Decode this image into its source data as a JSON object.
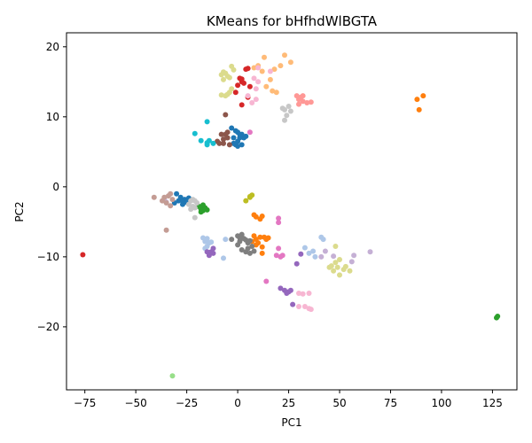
{
  "chart_data": {
    "type": "scatter",
    "title": "KMeans for bHfhdWlBGTA",
    "xlabel": "PC1",
    "ylabel": "PC2",
    "xlim": [
      -84,
      137
    ],
    "ylim": [
      -29,
      22
    ],
    "xticks": [
      -75,
      -50,
      -25,
      0,
      25,
      50,
      75,
      100,
      125
    ],
    "yticks": [
      -20,
      -10,
      0,
      10,
      20
    ],
    "grid": false,
    "legend": "none",
    "series": [
      {
        "color": "#1f77b4",
        "points": [
          [
            -30,
            -1
          ],
          [
            -29,
            -2
          ],
          [
            -28,
            -1.5
          ],
          [
            -27,
            -2.5
          ],
          [
            -26,
            -1.8
          ],
          [
            -25,
            -2.2
          ],
          [
            -24,
            -1.6
          ],
          [
            -27,
            -2
          ],
          [
            -31,
            -2.3
          ],
          [
            -2,
            7
          ],
          [
            -1,
            8
          ],
          [
            0,
            6.5
          ],
          [
            1,
            7.5
          ],
          [
            2,
            6
          ],
          [
            3,
            7
          ],
          [
            0,
            7.8
          ],
          [
            -2,
            6.2
          ],
          [
            1,
            7
          ],
          [
            -1,
            6
          ],
          [
            2,
            7.5
          ],
          [
            4,
            7.2
          ],
          [
            0,
            5.8
          ],
          [
            -3,
            8.4
          ]
        ]
      },
      {
        "color": "#aec7e8",
        "points": [
          [
            -17,
            -7.3
          ],
          [
            -16,
            -7.8
          ],
          [
            -15,
            -7.4
          ],
          [
            -14,
            -8
          ],
          [
            -15,
            -8.5
          ],
          [
            -13,
            -7.9
          ],
          [
            -16,
            -8.8
          ],
          [
            -7,
            -10.2
          ],
          [
            -6,
            -7.5
          ],
          [
            35,
            -9.5
          ],
          [
            38,
            -10
          ],
          [
            41,
            -7.2
          ],
          [
            42,
            -7.5
          ],
          [
            33,
            -8.7
          ],
          [
            37,
            -9.2
          ]
        ]
      },
      {
        "color": "#ff7f0e",
        "points": [
          [
            8,
            -4
          ],
          [
            9,
            -4.3
          ],
          [
            11,
            -4.6
          ],
          [
            12,
            -4.2
          ],
          [
            8,
            -7
          ],
          [
            9,
            -7.5
          ],
          [
            10,
            -8
          ],
          [
            11,
            -7.2
          ],
          [
            12,
            -8.6
          ],
          [
            13,
            -7.2
          ],
          [
            14,
            -7.5
          ],
          [
            15,
            -7.3
          ],
          [
            9,
            -8.3
          ],
          [
            7,
            -7.8
          ],
          [
            12,
            -9.5
          ],
          [
            88,
            12.5
          ],
          [
            91,
            13
          ],
          [
            89,
            11
          ]
        ]
      },
      {
        "color": "#ffbb78",
        "points": [
          [
            8,
            17
          ],
          [
            10,
            17.3
          ],
          [
            13,
            18.5
          ],
          [
            18,
            16.8
          ],
          [
            21,
            17.3
          ],
          [
            23,
            18.8
          ],
          [
            26,
            17.8
          ],
          [
            14,
            14.3
          ],
          [
            16,
            15.3
          ],
          [
            17,
            13.7
          ],
          [
            19,
            13.5
          ],
          [
            12,
            16.5
          ]
        ]
      },
      {
        "color": "#2ca02c",
        "points": [
          [
            -19,
            -2.8
          ],
          [
            -18,
            -3.2
          ],
          [
            -17,
            -3.4
          ],
          [
            -16,
            -3
          ],
          [
            -18,
            -3.6
          ],
          [
            -15,
            -3.3
          ],
          [
            -17,
            -2.6
          ],
          [
            127,
            -18.7
          ],
          [
            127.5,
            -18.5
          ]
        ]
      },
      {
        "color": "#98df8a",
        "points": [
          [
            -32,
            -27
          ]
        ]
      },
      {
        "color": "#d62728",
        "points": [
          [
            -76,
            -9.7
          ],
          [
            -1,
            13.5
          ],
          [
            0,
            14.5
          ],
          [
            1,
            15.5
          ],
          [
            2,
            15
          ],
          [
            3,
            14.8
          ],
          [
            4,
            16.8
          ],
          [
            5,
            16.9
          ],
          [
            6,
            14.3
          ],
          [
            5,
            12.8
          ],
          [
            2,
            11.7
          ],
          [
            2,
            15.4
          ]
        ]
      },
      {
        "color": "#ff9896",
        "points": [
          [
            29,
            13
          ],
          [
            30,
            12.5
          ],
          [
            31,
            12.8
          ],
          [
            32,
            12.2
          ],
          [
            30,
            11.8
          ],
          [
            32,
            13
          ],
          [
            34,
            12
          ],
          [
            36,
            12.1
          ]
        ]
      },
      {
        "color": "#9467bd",
        "points": [
          [
            -15,
            -9.3
          ],
          [
            -14,
            -9.8
          ],
          [
            -13,
            -9.3
          ],
          [
            -12,
            -9.5
          ],
          [
            -12,
            -8.8
          ],
          [
            21,
            -14.5
          ],
          [
            23,
            -14.8
          ],
          [
            24,
            -15.2
          ],
          [
            25,
            -15
          ],
          [
            26,
            -14.8
          ],
          [
            27,
            -16.8
          ],
          [
            29,
            -11
          ],
          [
            31,
            -9.6
          ]
        ]
      },
      {
        "color": "#c5b0d5",
        "points": [
          [
            -36,
            -1.8
          ],
          [
            -35,
            -2.2
          ],
          [
            41,
            -10
          ],
          [
            43,
            -9.2
          ],
          [
            47,
            -9.9
          ],
          [
            57,
            -9.8
          ],
          [
            65,
            -9.3
          ],
          [
            56,
            -10.7
          ]
        ]
      },
      {
        "color": "#8c564b",
        "points": [
          [
            -10,
            6.5
          ],
          [
            -8,
            7.5
          ],
          [
            -7,
            6.8
          ],
          [
            -6,
            7.5
          ],
          [
            -5,
            7
          ],
          [
            -4,
            6
          ],
          [
            -9,
            6.2
          ],
          [
            -6,
            10.3
          ],
          [
            -7,
            6.2
          ],
          [
            -5,
            7.8
          ]
        ]
      },
      {
        "color": "#c49c94",
        "points": [
          [
            -41,
            -1.5
          ],
          [
            -37,
            -2
          ],
          [
            -36,
            -1.5
          ],
          [
            -34,
            -1.3
          ],
          [
            -33,
            -2.7
          ],
          [
            -32,
            -1.8
          ],
          [
            -35,
            -2.3
          ],
          [
            -35,
            -6.2
          ],
          [
            -33,
            -1
          ]
        ]
      },
      {
        "color": "#e377c2",
        "points": [
          [
            6,
            7.8
          ],
          [
            20,
            -4.5
          ],
          [
            20,
            -5.1
          ],
          [
            20,
            -8.8
          ],
          [
            19,
            -9.8
          ],
          [
            21,
            -10
          ],
          [
            22,
            -9.8
          ],
          [
            14,
            -13.5
          ]
        ]
      },
      {
        "color": "#f7b6d2",
        "points": [
          [
            7,
            12
          ],
          [
            9,
            12.5
          ],
          [
            8,
            15.5
          ],
          [
            9,
            14
          ],
          [
            10,
            15
          ],
          [
            10,
            17
          ],
          [
            5,
            13
          ],
          [
            32,
            -15.3
          ],
          [
            35,
            -15.2
          ],
          [
            30,
            -17.1
          ],
          [
            33,
            -17.1
          ],
          [
            35,
            -17.4
          ],
          [
            36,
            -17.5
          ],
          [
            30,
            -15.2
          ],
          [
            16,
            16.5
          ]
        ]
      },
      {
        "color": "#7f7f7f",
        "points": [
          [
            -3,
            -7.5
          ],
          [
            0,
            -7
          ],
          [
            1,
            -7.3
          ],
          [
            2,
            -6.8
          ],
          [
            3,
            -7.4
          ],
          [
            4,
            -7.6
          ],
          [
            5,
            -8
          ],
          [
            6,
            -7.7
          ],
          [
            2,
            -9
          ],
          [
            4,
            -9.3
          ],
          [
            6,
            -9.5
          ],
          [
            8,
            -9.2
          ],
          [
            7,
            -8.5
          ],
          [
            1,
            -7.8
          ],
          [
            0,
            -8.3
          ],
          [
            5,
            -8.8
          ]
        ]
      },
      {
        "color": "#c7c7c7",
        "points": [
          [
            -23,
            -2
          ],
          [
            -22,
            -2.8
          ],
          [
            -21,
            -3
          ],
          [
            -20,
            -2.3
          ],
          [
            -22,
            -1.8
          ],
          [
            -24,
            -2.5
          ],
          [
            -21,
            -2
          ],
          [
            -23,
            -3.2
          ],
          [
            -21,
            -4.4
          ],
          [
            22,
            11.2
          ],
          [
            23,
            11
          ],
          [
            25,
            11.5
          ],
          [
            24,
            10.2
          ],
          [
            26,
            10.8
          ],
          [
            23,
            9.5
          ]
        ]
      },
      {
        "color": "#bcbd22",
        "points": [
          [
            4,
            -2
          ],
          [
            6,
            -1.5
          ],
          [
            7,
            -1.2
          ],
          [
            6,
            -1.4
          ]
        ]
      },
      {
        "color": "#dbdb8d",
        "points": [
          [
            -8,
            16
          ],
          [
            -7,
            16.4
          ],
          [
            -6,
            16.2
          ],
          [
            -5,
            15.8
          ],
          [
            -4,
            15.6
          ],
          [
            -2,
            16.7
          ],
          [
            -3,
            17.2
          ],
          [
            -7,
            15.3
          ],
          [
            -6,
            13
          ],
          [
            -5,
            13.2
          ],
          [
            -4,
            13.5
          ],
          [
            -3,
            14
          ],
          [
            -8,
            13.1
          ],
          [
            45,
            -11.5
          ],
          [
            47,
            -12
          ],
          [
            48,
            -8.5
          ],
          [
            49,
            -11.5
          ],
          [
            50,
            -12.6
          ],
          [
            52,
            -11.8
          ],
          [
            53,
            -11.4
          ],
          [
            55,
            -12
          ],
          [
            50,
            -10.4
          ],
          [
            46,
            -11.3
          ],
          [
            48,
            -10.8
          ]
        ]
      },
      {
        "color": "#17becf",
        "points": [
          [
            -21,
            7.6
          ],
          [
            -18,
            6.6
          ],
          [
            -15,
            6
          ],
          [
            -15,
            6.3
          ],
          [
            -14,
            6.6
          ],
          [
            -12,
            6.2
          ],
          [
            -15,
            9.3
          ]
        ]
      }
    ]
  }
}
